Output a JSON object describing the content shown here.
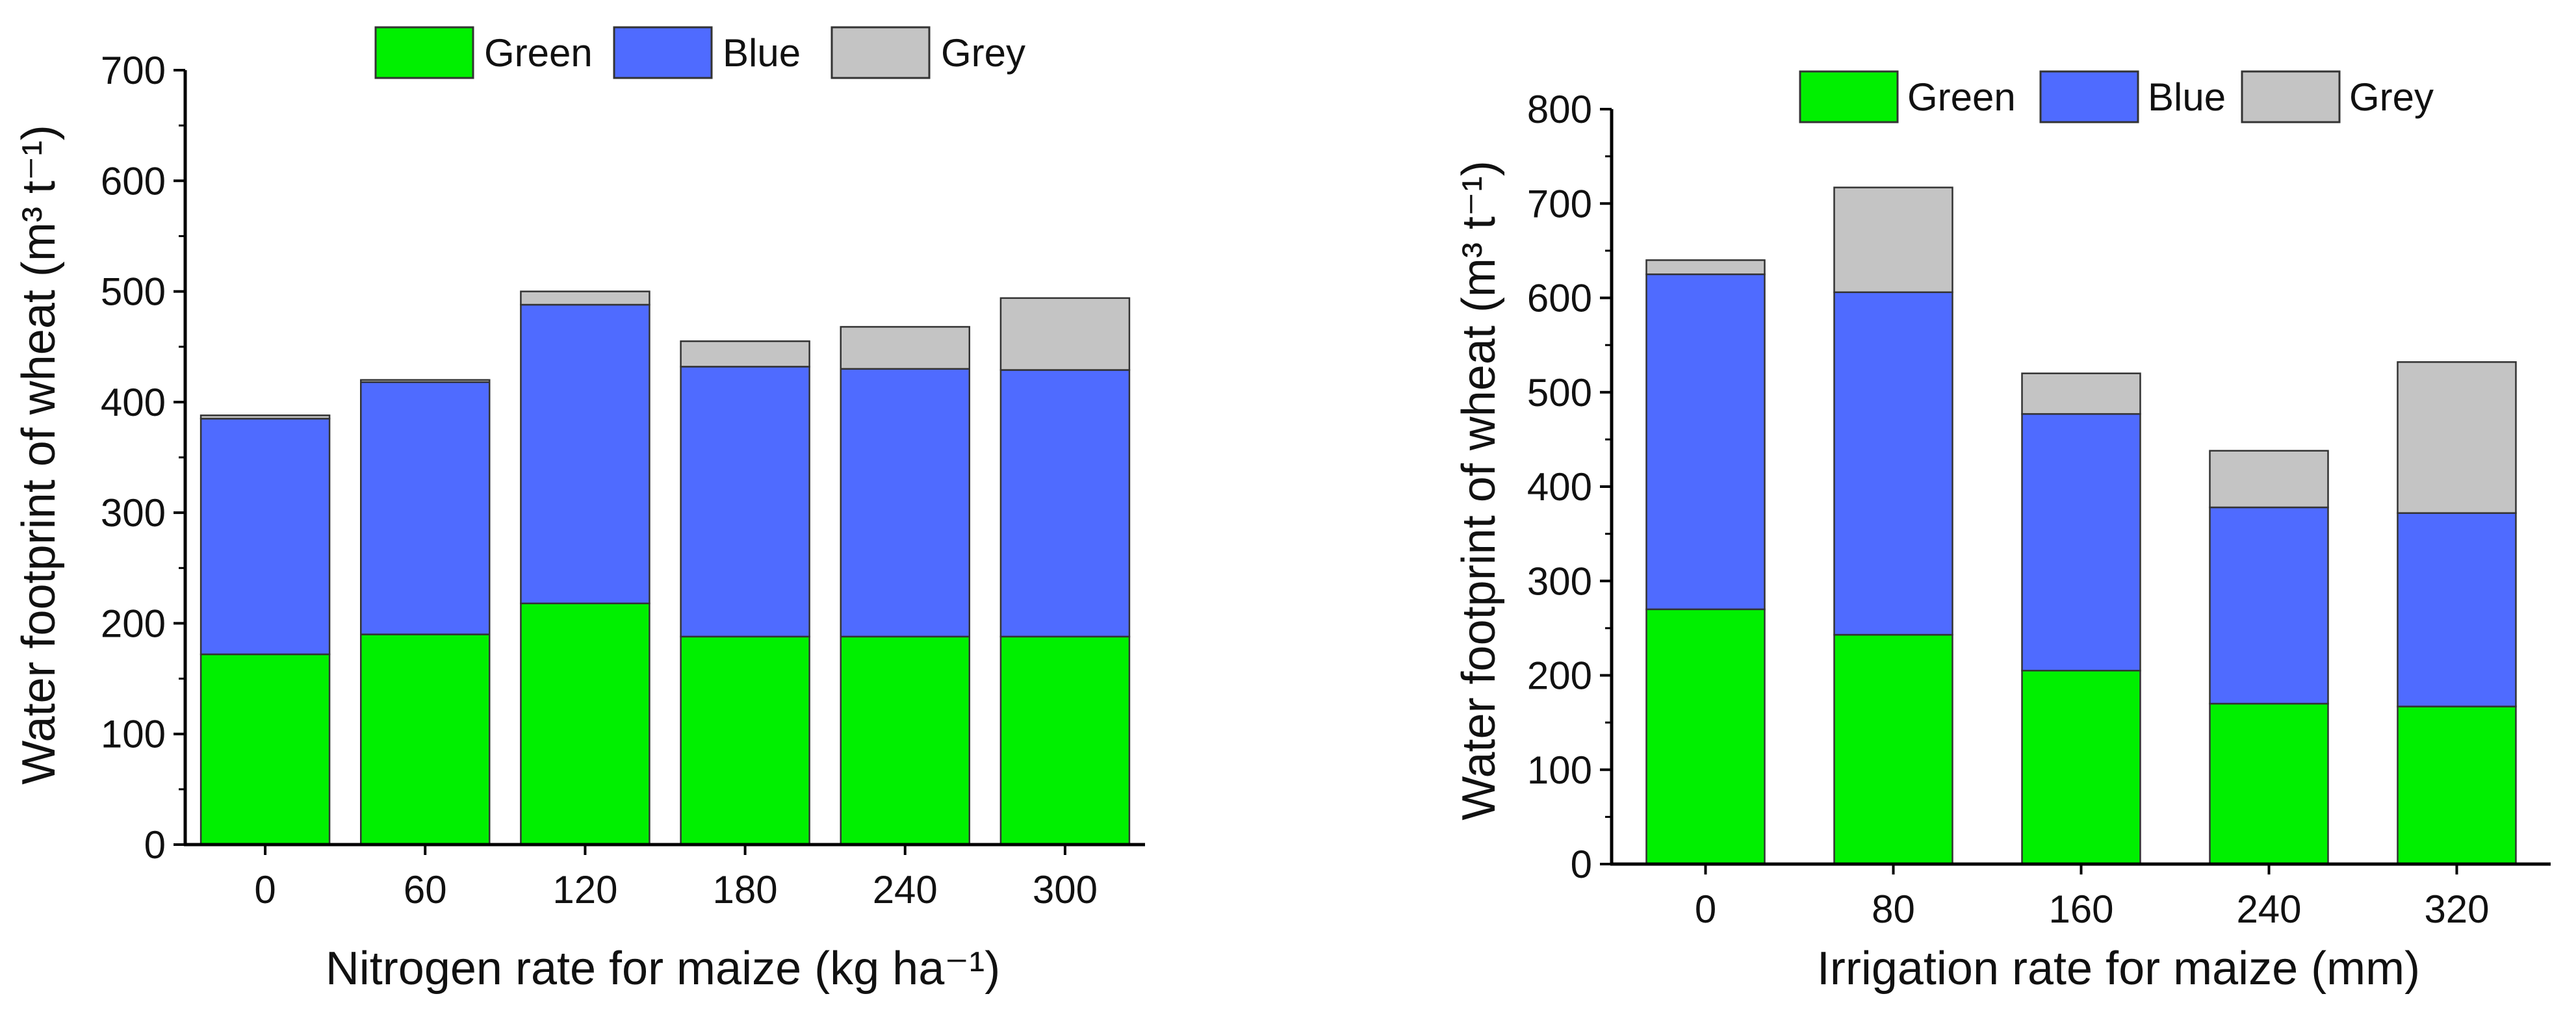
{
  "colors": {
    "green": "#00f000",
    "blue": "#4f6bff",
    "grey": "#c4c4c4",
    "axis": "#000000"
  },
  "legend_labels": [
    "Green",
    "Blue",
    "Grey"
  ],
  "chart_data": [
    {
      "type": "bar",
      "stacked": true,
      "title": "",
      "xlabel": "Nitrogen rate for maize (kg ha⁻¹)",
      "ylabel": "Water footprint of wheat (m³ t⁻¹)",
      "categories": [
        "0",
        "60",
        "120",
        "180",
        "240",
        "300"
      ],
      "ylim": [
        0,
        700
      ],
      "yticks": [
        "0",
        "100",
        "200",
        "300",
        "400",
        "500",
        "600",
        "700"
      ],
      "series": [
        {
          "name": "Green",
          "values": [
            172,
            190,
            218,
            188,
            188,
            188
          ]
        },
        {
          "name": "Blue",
          "values": [
            213,
            228,
            270,
            244,
            242,
            241
          ]
        },
        {
          "name": "Grey",
          "values": [
            3,
            2,
            12,
            23,
            38,
            65
          ]
        }
      ],
      "legend": "top-center"
    },
    {
      "type": "bar",
      "stacked": true,
      "title": "",
      "xlabel": "Irrigation rate for maize (mm)",
      "ylabel": "Water footprint of wheat (m³ t⁻¹)",
      "categories": [
        "0",
        "80",
        "160",
        "240",
        "320"
      ],
      "ylim": [
        0,
        800
      ],
      "yticks": [
        "0",
        "100",
        "200",
        "300",
        "400",
        "500",
        "600",
        "700",
        "800"
      ],
      "series": [
        {
          "name": "Green",
          "values": [
            270,
            243,
            205,
            170,
            167
          ]
        },
        {
          "name": "Blue",
          "values": [
            355,
            363,
            272,
            208,
            205
          ]
        },
        {
          "name": "Grey",
          "values": [
            15,
            111,
            43,
            60,
            160
          ]
        }
      ],
      "legend": "top-center"
    }
  ]
}
